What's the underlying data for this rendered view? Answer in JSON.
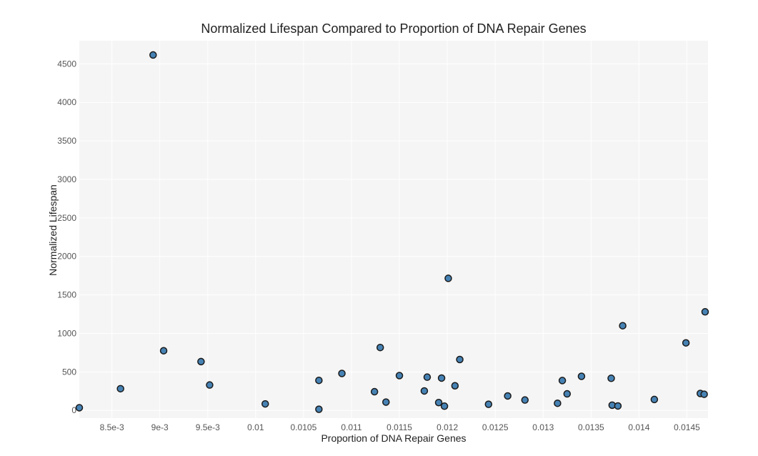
{
  "chart_data": {
    "type": "scatter",
    "title": "Normalized Lifespan Compared to Proportion of DNA Repair Genes",
    "xlabel": "Proportion of DNA Repair Genes",
    "ylabel": "Normalized Lifespan",
    "xlim": [
      0.00816,
      0.01472
    ],
    "ylim": [
      -100,
      4800
    ],
    "x_ticks": [
      {
        "value": 0.0085,
        "label": "8.5e-3"
      },
      {
        "value": 0.009,
        "label": "9e-3"
      },
      {
        "value": 0.0095,
        "label": "9.5e-3"
      },
      {
        "value": 0.01,
        "label": "0.01"
      },
      {
        "value": 0.0105,
        "label": "0.0105"
      },
      {
        "value": 0.011,
        "label": "0.011"
      },
      {
        "value": 0.0115,
        "label": "0.0115"
      },
      {
        "value": 0.012,
        "label": "0.012"
      },
      {
        "value": 0.0125,
        "label": "0.0125"
      },
      {
        "value": 0.013,
        "label": "0.013"
      },
      {
        "value": 0.0135,
        "label": "0.0135"
      },
      {
        "value": 0.014,
        "label": "0.014"
      },
      {
        "value": 0.0145,
        "label": "0.0145"
      }
    ],
    "y_ticks": [
      {
        "value": 0,
        "label": "0"
      },
      {
        "value": 500,
        "label": "500"
      },
      {
        "value": 1000,
        "label": "1000"
      },
      {
        "value": 1500,
        "label": "1500"
      },
      {
        "value": 2000,
        "label": "2000"
      },
      {
        "value": 2500,
        "label": "2500"
      },
      {
        "value": 3000,
        "label": "3000"
      },
      {
        "value": 3500,
        "label": "3500"
      },
      {
        "value": 4000,
        "label": "4000"
      },
      {
        "value": 4500,
        "label": "4500"
      }
    ],
    "grid": true,
    "marker_color": "#4682b4",
    "marker_edge_color": "#1a1a1a",
    "points": [
      {
        "x": 0.00816,
        "y": 35
      },
      {
        "x": 0.00859,
        "y": 282
      },
      {
        "x": 0.00893,
        "y": 4615
      },
      {
        "x": 0.00904,
        "y": 775
      },
      {
        "x": 0.00943,
        "y": 634
      },
      {
        "x": 0.00952,
        "y": 330
      },
      {
        "x": 0.0101,
        "y": 85
      },
      {
        "x": 0.01066,
        "y": 390
      },
      {
        "x": 0.01066,
        "y": 15
      },
      {
        "x": 0.0109,
        "y": 480
      },
      {
        "x": 0.01124,
        "y": 243
      },
      {
        "x": 0.0113,
        "y": 817
      },
      {
        "x": 0.01136,
        "y": 108
      },
      {
        "x": 0.0115,
        "y": 452
      },
      {
        "x": 0.01176,
        "y": 253
      },
      {
        "x": 0.01179,
        "y": 432
      },
      {
        "x": 0.01191,
        "y": 102
      },
      {
        "x": 0.01194,
        "y": 420
      },
      {
        "x": 0.01197,
        "y": 55
      },
      {
        "x": 0.01201,
        "y": 1715
      },
      {
        "x": 0.01208,
        "y": 320
      },
      {
        "x": 0.01213,
        "y": 661
      },
      {
        "x": 0.01243,
        "y": 80
      },
      {
        "x": 0.01263,
        "y": 188
      },
      {
        "x": 0.01281,
        "y": 135
      },
      {
        "x": 0.01315,
        "y": 93
      },
      {
        "x": 0.0132,
        "y": 388
      },
      {
        "x": 0.01325,
        "y": 215
      },
      {
        "x": 0.0134,
        "y": 443
      },
      {
        "x": 0.01371,
        "y": 417
      },
      {
        "x": 0.01372,
        "y": 68
      },
      {
        "x": 0.01378,
        "y": 58
      },
      {
        "x": 0.01383,
        "y": 1100
      },
      {
        "x": 0.01416,
        "y": 142
      },
      {
        "x": 0.01449,
        "y": 877
      },
      {
        "x": 0.01464,
        "y": 220
      },
      {
        "x": 0.01468,
        "y": 210
      },
      {
        "x": 0.01469,
        "y": 1280
      }
    ]
  }
}
